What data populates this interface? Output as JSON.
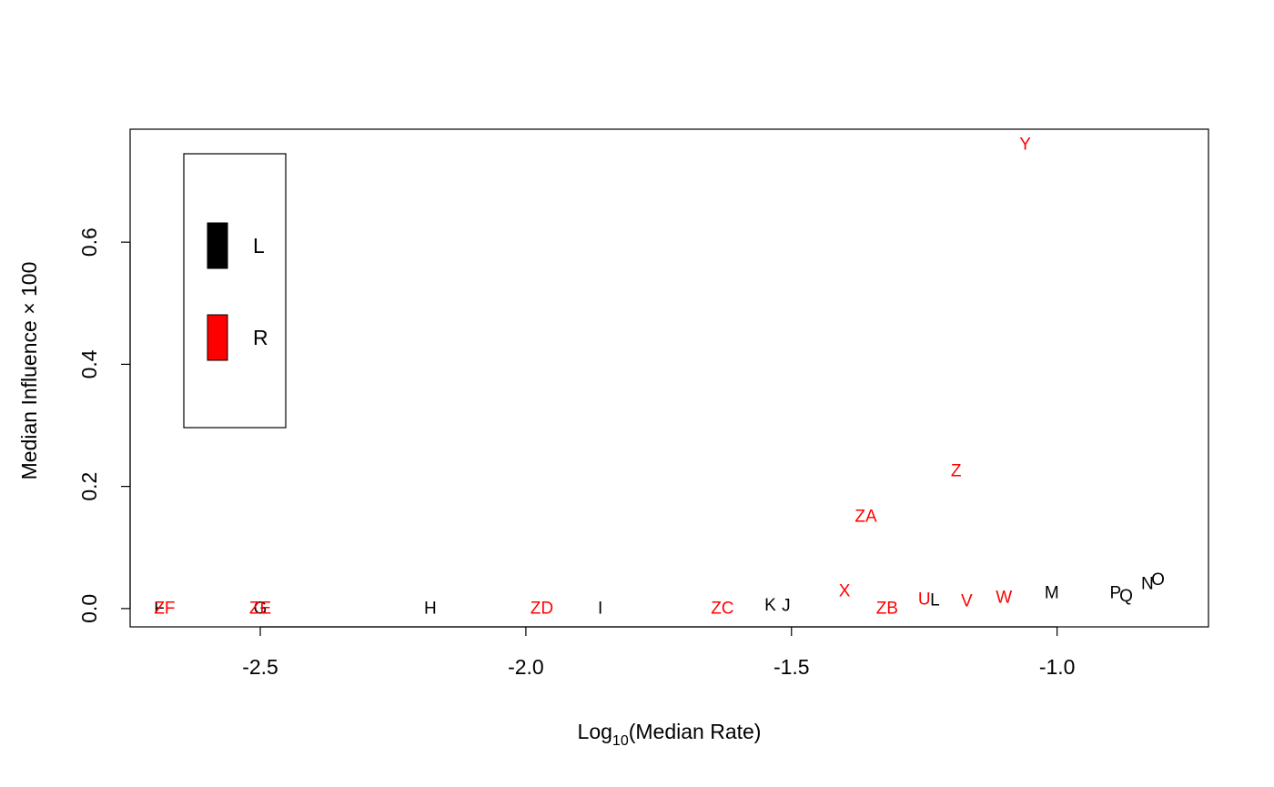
{
  "chart_data": {
    "type": "scatter",
    "marker": "text-label",
    "title": "",
    "xlabel": {
      "base": "Log",
      "sub": "10",
      "rest": "(Median Rate)"
    },
    "ylabel": "Median Influence × 100",
    "xlim": [
      -2.745,
      -0.715
    ],
    "ylim": [
      -0.03,
      0.785
    ],
    "x_ticks": [
      -2.5,
      -2.0,
      -1.5,
      -1.0
    ],
    "x_tick_labels": [
      "-2.5",
      "-2.0",
      "-1.5",
      "-1.0"
    ],
    "y_ticks": [
      0.0,
      0.2,
      0.4,
      0.6
    ],
    "y_tick_labels": [
      "0.0",
      "0.2",
      "0.4",
      "0.6"
    ],
    "grid": false,
    "legend": {
      "placement": "top-left",
      "entries": [
        {
          "label": "L",
          "color": "#000000"
        },
        {
          "label": "R",
          "color": "#ff0000"
        }
      ]
    },
    "series": [
      {
        "name": "L",
        "color": "#000000",
        "points": [
          {
            "label": "F",
            "x": -2.69,
            "y": 0.0
          },
          {
            "label": "G",
            "x": -2.5,
            "y": 0.0
          },
          {
            "label": "H",
            "x": -2.18,
            "y": 0.0
          },
          {
            "label": "I",
            "x": -1.86,
            "y": 0.0
          },
          {
            "label": "K",
            "x": -1.54,
            "y": 0.005
          },
          {
            "label": "J",
            "x": -1.51,
            "y": 0.004
          },
          {
            "label": "L",
            "x": -1.23,
            "y": 0.013
          },
          {
            "label": "M",
            "x": -1.01,
            "y": 0.025
          },
          {
            "label": "P",
            "x": -0.89,
            "y": 0.025
          },
          {
            "label": "Q",
            "x": -0.87,
            "y": 0.02
          },
          {
            "label": "N",
            "x": -0.83,
            "y": 0.04
          },
          {
            "label": "O",
            "x": -0.81,
            "y": 0.047
          }
        ]
      },
      {
        "name": "R",
        "color": "#ff0000",
        "points": [
          {
            "label": "ZF",
            "x": -2.68,
            "y": 0.0
          },
          {
            "label": "ZE",
            "x": -2.5,
            "y": 0.0
          },
          {
            "label": "ZD",
            "x": -1.97,
            "y": 0.0
          },
          {
            "label": "ZC",
            "x": -1.63,
            "y": 0.0
          },
          {
            "label": "X",
            "x": -1.4,
            "y": 0.028
          },
          {
            "label": "ZA",
            "x": -1.36,
            "y": 0.15
          },
          {
            "label": "ZB",
            "x": -1.32,
            "y": 0.0
          },
          {
            "label": "U",
            "x": -1.25,
            "y": 0.015
          },
          {
            "label": "Z",
            "x": -1.19,
            "y": 0.225
          },
          {
            "label": "V",
            "x": -1.17,
            "y": 0.012
          },
          {
            "label": "W",
            "x": -1.1,
            "y": 0.018
          },
          {
            "label": "Y",
            "x": -1.06,
            "y": 0.76
          }
        ]
      }
    ]
  }
}
